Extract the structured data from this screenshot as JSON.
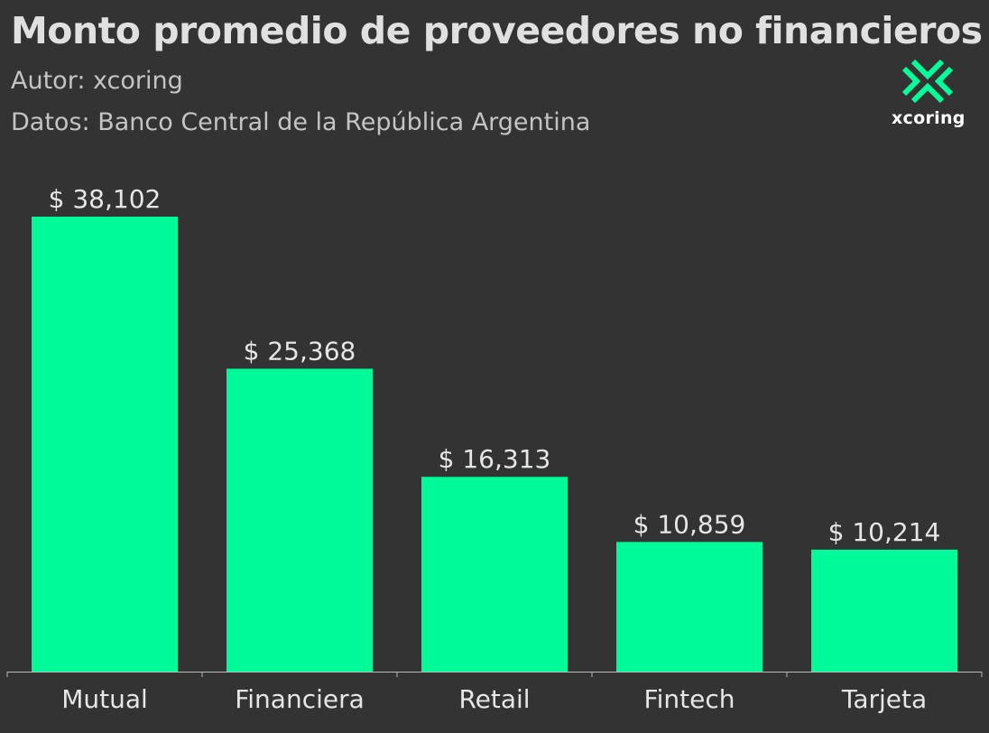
{
  "header": {
    "title": "Monto promedio de proveedores no financieros",
    "author": "Autor: xcoring",
    "source": "Datos: Banco Central de la República Argentina"
  },
  "logo": {
    "text": "xcoring",
    "icon": "xcoring-x-logo-icon",
    "color": "#00ff99"
  },
  "colors": {
    "background": "#333333",
    "bar": "#00fa9a",
    "text": "#e6e6e6",
    "axis": "#bbbbbb"
  },
  "chart_data": {
    "type": "bar",
    "categories": [
      "Mutual",
      "Financiera",
      "Retail",
      "Fintech",
      "Tarjeta"
    ],
    "values": [
      38102,
      25368,
      16313,
      10859,
      10214
    ],
    "data_labels": [
      "$ 38,102",
      "$ 25,368",
      "$ 16,313",
      "$ 10,859",
      "$ 10,214"
    ],
    "title": "Monto promedio de proveedores no financieros",
    "xlabel": "",
    "ylabel": "",
    "ylim": [
      0,
      38102
    ],
    "grid": false,
    "legend": "none"
  }
}
